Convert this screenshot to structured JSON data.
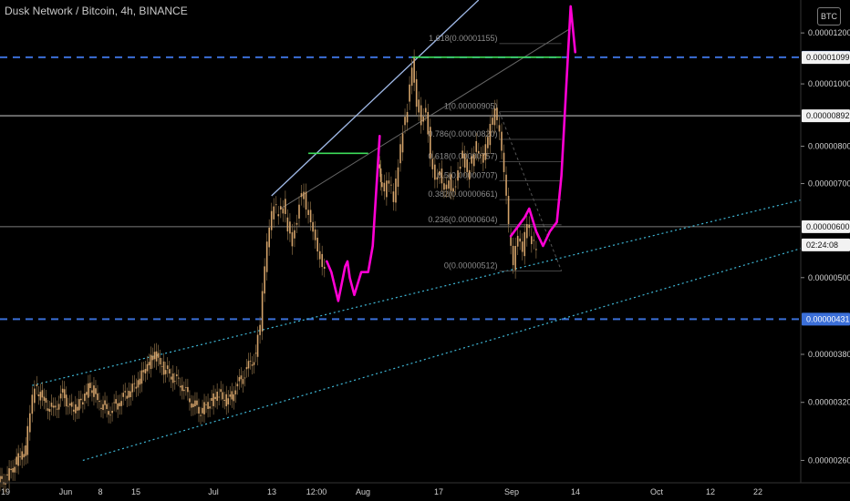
{
  "header": {
    "title": "Dusk Network / Bitcoin, 4h, BINANCE",
    "currency_button": "BTC"
  },
  "colors": {
    "background": "#000000",
    "candle": "#d4a36a",
    "projection": "#ff00d4",
    "support_dashed": "#3b6fd8",
    "channel_dotted": "#3fb7d6",
    "resistance_green": "#3ddc5a",
    "trendline": "#9fb8e6"
  },
  "chart_data": {
    "type": "candlestick",
    "y_scale": "log",
    "ylim": [
      2.4e-06,
      1.35e-05
    ],
    "y_ticks": [
      "0.00001200",
      "0.00001000",
      "0.00000800",
      "0.00000700",
      "0.00000500",
      "0.00000380",
      "0.00000320",
      "0.00000260"
    ],
    "x_ticks": [
      "19",
      "Jun",
      "8",
      "15",
      "Jul",
      "13",
      "12:00",
      "Aug",
      "17",
      "Sep",
      "14",
      "Oct",
      "12",
      "22"
    ],
    "price_labels": [
      {
        "text": "0.00001100",
        "value": 1.1e-05,
        "style": "blue"
      },
      {
        "text": "0.00001099",
        "value": 1.099e-05,
        "style": "white"
      },
      {
        "text": "0.00000892",
        "value": 8.92e-06,
        "style": "white"
      },
      {
        "text": "0.00000600",
        "value": 6e-06,
        "style": "white"
      },
      {
        "text": "02:24:08",
        "value": 5.62e-06,
        "style": "white"
      },
      {
        "text": "0.00000431",
        "value": 4.31e-06,
        "style": "blue"
      }
    ],
    "horizontal_levels": [
      {
        "value": 1.1e-05,
        "style": "blue-dashed"
      },
      {
        "value": 8.92e-06,
        "style": "gray"
      },
      {
        "value": 6e-06,
        "style": "gray-thin"
      },
      {
        "value": 4.31e-06,
        "style": "blue-dashed"
      }
    ],
    "fib_levels": [
      {
        "label": "1.618(0.00001155)",
        "value": 1.155e-05
      },
      {
        "label": "1(0.00000905)",
        "value": 9.05e-06
      },
      {
        "label": "0.786(0.00000820)",
        "value": 8.2e-06
      },
      {
        "label": "0.618(0.00000757)",
        "value": 7.57e-06
      },
      {
        "label": "0.5(0.00000707)",
        "value": 7.07e-06
      },
      {
        "label": "0.382(0.00000661)",
        "value": 6.61e-06
      },
      {
        "label": "0.236(0.00000604)",
        "value": 6.04e-06
      },
      {
        "label": "0(0.00000512)",
        "value": 5.12e-06
      }
    ],
    "fib_range": {
      "x_start": 108.5,
      "x_end": 122
    },
    "x_range": [
      0,
      174
    ],
    "channel_upper": [
      {
        "x": 7,
        "y": 3.4e-06
      },
      {
        "x": 174,
        "y": 6.6e-06
      }
    ],
    "channel_lower": [
      {
        "x": 18,
        "y": 2.6e-06
      },
      {
        "x": 174,
        "y": 5.55e-06
      }
    ],
    "trendline_steep": [
      {
        "x": 59,
        "y": 6.7e-06
      },
      {
        "x": 104,
        "y": 1.35e-05
      }
    ],
    "trendline_faint": [
      {
        "x": 61,
        "y": 6.4e-06
      },
      {
        "x": 124,
        "y": 1.22e-05
      }
    ],
    "green_lines": [
      {
        "x1": 67,
        "x2": 80,
        "y": 7.8e-06
      },
      {
        "x1": 89.5,
        "x2": 122,
        "y": 1.1e-05
      }
    ],
    "projection_path": [
      {
        "x": 71,
        "y": 5.3e-06
      },
      {
        "x": 72,
        "y": 5.1e-06
      },
      {
        "x": 73.5,
        "y": 4.6e-06
      },
      {
        "x": 75,
        "y": 5.2e-06
      },
      {
        "x": 75.5,
        "y": 5.3e-06
      },
      {
        "x": 76,
        "y": 5e-06
      },
      {
        "x": 77,
        "y": 4.7e-06
      },
      {
        "x": 78.5,
        "y": 5.1e-06
      },
      {
        "x": 80,
        "y": 5.1e-06
      },
      {
        "x": 81,
        "y": 5.6e-06
      },
      {
        "x": 82.5,
        "y": 8.3e-06
      },
      {
        "x": 111,
        "y": 5.8e-06
      },
      {
        "x": 114,
        "y": 6.2e-06
      },
      {
        "x": 115,
        "y": 6.4e-06
      },
      {
        "x": 116.5,
        "y": 5.9e-06
      },
      {
        "x": 118,
        "y": 5.6e-06
      },
      {
        "x": 119.5,
        "y": 5.9e-06
      },
      {
        "x": 121,
        "y": 6.1e-06
      },
      {
        "x": 122,
        "y": 7.2e-06
      },
      {
        "x": 123,
        "y": 9.8e-06
      },
      {
        "x": 124,
        "y": 1.32e-05
      },
      {
        "x": 125,
        "y": 1.12e-05
      }
    ],
    "price_series": [
      {
        "x": 0,
        "y": 2.4e-06
      },
      {
        "x": 2,
        "y": 2.45e-06
      },
      {
        "x": 4,
        "y": 2.6e-06
      },
      {
        "x": 6,
        "y": 2.7e-06
      },
      {
        "x": 7,
        "y": 3.1e-06
      },
      {
        "x": 8,
        "y": 3.4e-06
      },
      {
        "x": 10,
        "y": 3.2e-06
      },
      {
        "x": 12,
        "y": 3.1e-06
      },
      {
        "x": 14,
        "y": 3.3e-06
      },
      {
        "x": 16,
        "y": 3.1e-06
      },
      {
        "x": 18,
        "y": 3.2e-06
      },
      {
        "x": 20,
        "y": 3.4e-06
      },
      {
        "x": 22,
        "y": 3.2e-06
      },
      {
        "x": 24,
        "y": 3.1e-06
      },
      {
        "x": 26,
        "y": 3.2e-06
      },
      {
        "x": 28,
        "y": 3.3e-06
      },
      {
        "x": 30,
        "y": 3.4e-06
      },
      {
        "x": 32,
        "y": 3.6e-06
      },
      {
        "x": 34,
        "y": 3.8e-06
      },
      {
        "x": 36,
        "y": 3.6e-06
      },
      {
        "x": 38,
        "y": 3.5e-06
      },
      {
        "x": 40,
        "y": 3.4e-06
      },
      {
        "x": 42,
        "y": 3.2e-06
      },
      {
        "x": 44,
        "y": 3.1e-06
      },
      {
        "x": 46,
        "y": 3.2e-06
      },
      {
        "x": 48,
        "y": 3.3e-06
      },
      {
        "x": 50,
        "y": 3.2e-06
      },
      {
        "x": 52,
        "y": 3.4e-06
      },
      {
        "x": 54,
        "y": 3.6e-06
      },
      {
        "x": 56,
        "y": 3.8e-06
      },
      {
        "x": 57,
        "y": 4.2e-06
      },
      {
        "x": 58,
        "y": 5.2e-06
      },
      {
        "x": 59,
        "y": 6e-06
      },
      {
        "x": 60,
        "y": 6.5e-06
      },
      {
        "x": 61,
        "y": 6.3e-06
      },
      {
        "x": 62,
        "y": 6.5e-06
      },
      {
        "x": 63,
        "y": 6e-06
      },
      {
        "x": 64,
        "y": 5.7e-06
      },
      {
        "x": 65,
        "y": 6.2e-06
      },
      {
        "x": 66,
        "y": 6.9e-06
      },
      {
        "x": 67,
        "y": 6.5e-06
      },
      {
        "x": 68,
        "y": 6.2e-06
      },
      {
        "x": 69,
        "y": 5.8e-06
      },
      {
        "x": 70,
        "y": 5.4e-06
      },
      {
        "x": 71,
        "y": 5.2e-06
      }
    ],
    "price_series_2": [
      {
        "x": 82.5,
        "y": 7.5e-06
      },
      {
        "x": 83,
        "y": 7e-06
      },
      {
        "x": 84,
        "y": 6.8e-06
      },
      {
        "x": 85,
        "y": 7.1e-06
      },
      {
        "x": 86,
        "y": 6.6e-06
      },
      {
        "x": 87,
        "y": 7.5e-06
      },
      {
        "x": 88,
        "y": 8.5e-06
      },
      {
        "x": 89,
        "y": 9.2e-06
      },
      {
        "x": 90,
        "y": 1.08e-05
      },
      {
        "x": 91,
        "y": 9.4e-06
      },
      {
        "x": 92,
        "y": 8.8e-06
      },
      {
        "x": 93,
        "y": 9.2e-06
      },
      {
        "x": 94,
        "y": 7.8e-06
      },
      {
        "x": 95,
        "y": 7.2e-06
      },
      {
        "x": 96,
        "y": 7.4e-06
      },
      {
        "x": 97,
        "y": 6.9e-06
      },
      {
        "x": 98,
        "y": 7.1e-06
      },
      {
        "x": 99,
        "y": 6.8e-06
      },
      {
        "x": 100,
        "y": 7.3e-06
      },
      {
        "x": 101,
        "y": 7.8e-06
      },
      {
        "x": 102,
        "y": 7.2e-06
      },
      {
        "x": 103,
        "y": 7.6e-06
      },
      {
        "x": 104,
        "y": 8e-06
      },
      {
        "x": 105,
        "y": 7.6e-06
      },
      {
        "x": 106,
        "y": 7.9e-06
      },
      {
        "x": 107,
        "y": 8.5e-06
      },
      {
        "x": 108,
        "y": 9e-06
      },
      {
        "x": 109,
        "y": 8.3e-06
      },
      {
        "x": 110,
        "y": 7.2e-06
      },
      {
        "x": 111,
        "y": 6e-06
      }
    ],
    "price_series_3": [
      {
        "x": 111,
        "y": 5.8e-06
      },
      {
        "x": 112,
        "y": 5.2e-06
      },
      {
        "x": 113,
        "y": 5.8e-06
      },
      {
        "x": 114,
        "y": 5.5e-06
      },
      {
        "x": 115,
        "y": 6.1e-06
      },
      {
        "x": 116,
        "y": 5.7e-06
      },
      {
        "x": 117,
        "y": 5.6e-06
      }
    ]
  }
}
